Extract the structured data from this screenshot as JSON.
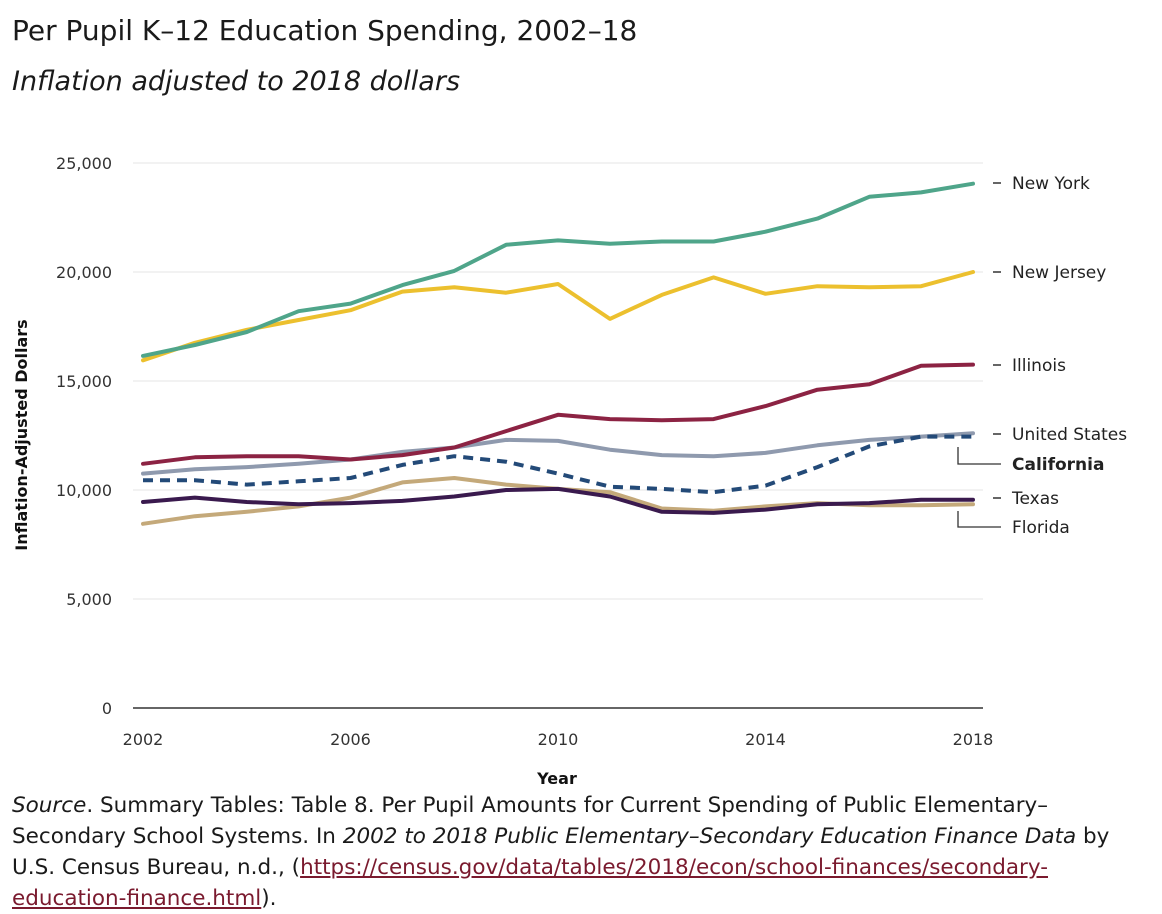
{
  "chart_data": {
    "type": "line",
    "title": "Per Pupil K–12 Education Spending, 2002–18",
    "subtitle": "Inflation adjusted to 2018 dollars",
    "xlabel": "Year",
    "ylabel": "Inflation-Adjusted Dollars",
    "x": [
      2002,
      2003,
      2004,
      2005,
      2006,
      2007,
      2008,
      2009,
      2010,
      2011,
      2012,
      2013,
      2014,
      2015,
      2016,
      2017,
      2018
    ],
    "x_ticks": [
      2002,
      2006,
      2010,
      2014,
      2018
    ],
    "x_tick_labels": [
      "2002",
      "2006",
      "2010",
      "2014",
      "2018"
    ],
    "y_ticks": [
      0,
      5000,
      10000,
      15000,
      20000,
      25000
    ],
    "y_tick_labels": [
      "0",
      "5,000",
      "10,000",
      "15,000",
      "20,000",
      "25,000"
    ],
    "ylim": [
      0,
      25000
    ],
    "grid": "horizontal",
    "series": [
      {
        "name": "New York",
        "color": "#4fa58a",
        "dashed": false,
        "bold": false,
        "values": [
          16150,
          16650,
          17250,
          18200,
          18550,
          19400,
          20050,
          21250,
          21450,
          21300,
          21400,
          21400,
          21850,
          22450,
          23450,
          23650,
          24050
        ]
      },
      {
        "name": "New Jersey",
        "color": "#ecc02e",
        "dashed": false,
        "bold": false,
        "values": [
          15950,
          16750,
          17350,
          17800,
          18250,
          19100,
          19300,
          19050,
          19450,
          17850,
          18950,
          19750,
          19000,
          19350,
          19300,
          19350,
          20000
        ]
      },
      {
        "name": "Illinois",
        "color": "#8c2343",
        "dashed": false,
        "bold": false,
        "values": [
          11200,
          11500,
          11550,
          11550,
          11400,
          11600,
          11950,
          12700,
          13450,
          13250,
          13200,
          13250,
          13850,
          14600,
          14850,
          15700,
          15750
        ]
      },
      {
        "name": "United States",
        "color": "#8f9aae",
        "dashed": false,
        "bold": false,
        "values": [
          10750,
          10950,
          11050,
          11200,
          11400,
          11750,
          11950,
          12300,
          12250,
          11850,
          11600,
          11550,
          11700,
          12050,
          12300,
          12450,
          12600
        ]
      },
      {
        "name": "California",
        "color": "#234a78",
        "dashed": true,
        "bold": true,
        "values": [
          10450,
          10450,
          10250,
          10400,
          10550,
          11150,
          11550,
          11300,
          10750,
          10150,
          10050,
          9900,
          10200,
          11050,
          12000,
          12450,
          12450
        ]
      },
      {
        "name": "Texas",
        "color": "#c4a97a",
        "dashed": false,
        "bold": false,
        "values": [
          8450,
          8800,
          9000,
          9250,
          9650,
          10350,
          10550,
          10250,
          10050,
          9900,
          9150,
          9050,
          9250,
          9400,
          9300,
          9300,
          9350
        ]
      },
      {
        "name": "Florida",
        "color": "#3a1a4e",
        "dashed": false,
        "bold": false,
        "values": [
          9450,
          9650,
          9450,
          9350,
          9400,
          9500,
          9700,
          10000,
          10050,
          9700,
          9000,
          8950,
          9100,
          9350,
          9400,
          9550,
          9550
        ]
      }
    ]
  },
  "source": {
    "label": "Source",
    "text1": ". Summary Tables: Table 8. Per Pupil Amounts for Current Spending of Public Elementary–Secondary School Systems. In ",
    "italic": "2002 to 2018 Public Elementary–Secondary Education Finance Data",
    "text2": " by U.S. Census Bureau, n.d., (",
    "link": "https://census.gov/data/tables/2018/econ/school-finances/secondary-education-finance.html",
    "text3": ")."
  }
}
